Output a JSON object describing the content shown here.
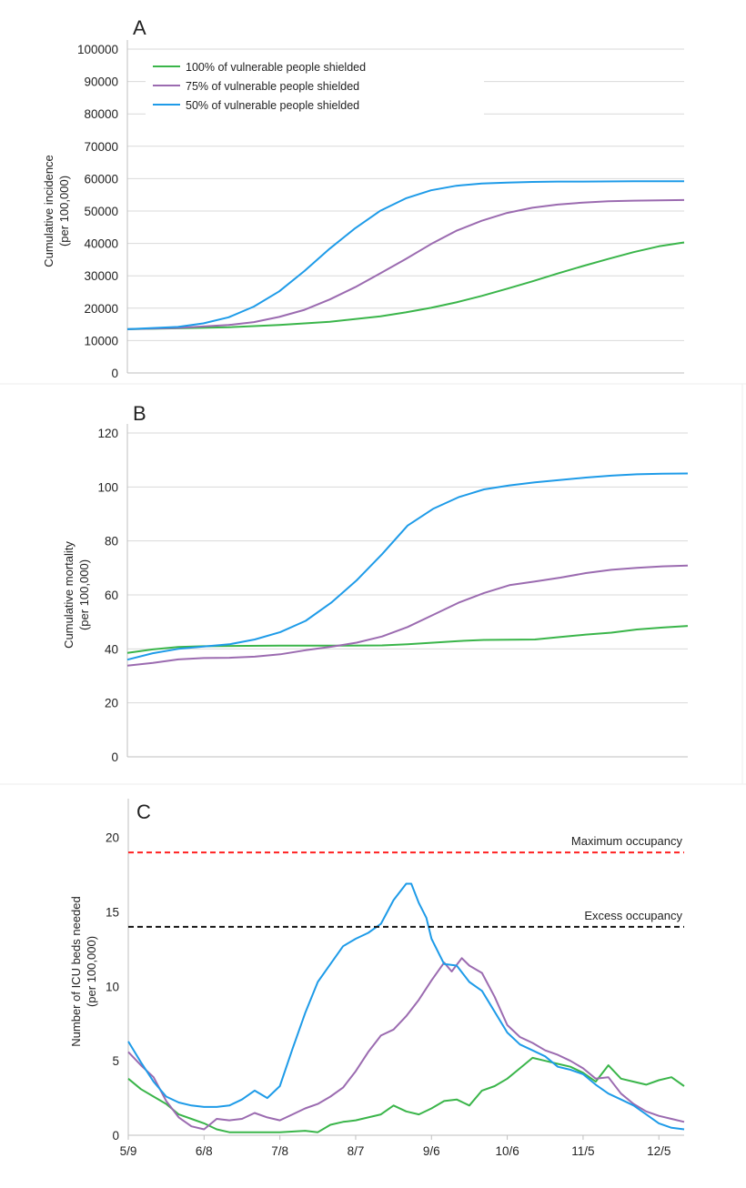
{
  "panel_labels": {
    "a": "A",
    "b": "B",
    "c": "C"
  },
  "legend": [
    {
      "label": "100% of vulnerable people shielded",
      "color": "#3ab54a"
    },
    {
      "label": "75% of vulnerable people shielded",
      "color": "#9b6bb0"
    },
    {
      "label": "50% of vulnerable people shielded",
      "color": "#1e9be8"
    }
  ],
  "reference_lines": {
    "maximum": {
      "label": "Maximum occupancy",
      "value": 19,
      "color": "#ff2020"
    },
    "excess": {
      "label": "Excess occupancy",
      "value": 14,
      "color": "#111111"
    }
  },
  "chart_data": [
    {
      "type": "line",
      "panel": "A",
      "ylabel": "Cumulative incidence\n(per 100,000)",
      "ylim": [
        0,
        100000
      ],
      "yticks": [
        0,
        10000,
        20000,
        30000,
        40000,
        50000,
        60000,
        70000,
        80000,
        90000,
        100000
      ],
      "xlim": [
        0,
        220
      ],
      "grid": "horizontal",
      "legend_placement": "top-left",
      "series": [
        {
          "name": "100% of vulnerable people shielded",
          "color": "#3ab54a",
          "x": [
            0,
            20,
            40,
            60,
            80,
            100,
            110,
            120,
            130,
            140,
            150,
            160,
            170,
            180,
            190,
            200,
            210,
            220
          ],
          "y": [
            13500,
            13800,
            14100,
            14800,
            15800,
            17500,
            18700,
            20100,
            21800,
            23800,
            26000,
            28300,
            30700,
            33000,
            35200,
            37300,
            39100,
            40300
          ]
        },
        {
          "name": "75% of vulnerable people shielded",
          "color": "#9b6bb0",
          "x": [
            0,
            20,
            40,
            50,
            60,
            70,
            80,
            90,
            100,
            110,
            120,
            130,
            140,
            150,
            160,
            170,
            180,
            190,
            200,
            210,
            220
          ],
          "y": [
            13500,
            13900,
            14800,
            15700,
            17300,
            19500,
            22700,
            26500,
            30800,
            35200,
            39800,
            43900,
            47000,
            49400,
            51000,
            52000,
            52600,
            53000,
            53200,
            53300,
            53400
          ]
        },
        {
          "name": "50% of vulnerable people shielded",
          "color": "#1e9be8",
          "x": [
            0,
            20,
            30,
            40,
            50,
            60,
            70,
            80,
            90,
            100,
            110,
            120,
            130,
            140,
            150,
            160,
            170,
            180,
            200,
            220
          ],
          "y": [
            13500,
            14200,
            15300,
            17200,
            20500,
            25200,
            31500,
            38400,
            44700,
            50100,
            53900,
            56400,
            57800,
            58500,
            58800,
            59000,
            59100,
            59100,
            59200,
            59200
          ]
        }
      ]
    },
    {
      "type": "line",
      "panel": "B",
      "ylabel": "Cumulative mortality\n(per 100,000)",
      "ylim": [
        0,
        120
      ],
      "yticks": [
        0,
        20,
        40,
        60,
        80,
        100,
        120
      ],
      "xlim": [
        0,
        220
      ],
      "grid": "horizontal",
      "series": [
        {
          "name": "100% of vulnerable people shielded",
          "color": "#3ab54a",
          "x": [
            0,
            10,
            20,
            30,
            40,
            60,
            80,
            100,
            110,
            120,
            130,
            140,
            150,
            160,
            170,
            180,
            190,
            200,
            210,
            220
          ],
          "y": [
            38.5,
            39.8,
            40.7,
            41.0,
            41.1,
            41.2,
            41.2,
            41.3,
            41.7,
            42.3,
            42.9,
            43.3,
            43.4,
            43.5,
            44.4,
            45.3,
            46.0,
            47.2,
            47.9,
            48.5
          ]
        },
        {
          "name": "75% of vulnerable people shielded",
          "color": "#9b6bb0",
          "x": [
            0,
            10,
            20,
            30,
            40,
            50,
            60,
            70,
            80,
            90,
            100,
            110,
            120,
            130,
            140,
            150,
            160,
            170,
            180,
            190,
            200,
            210,
            220
          ],
          "y": [
            33.8,
            34.8,
            36.1,
            36.6,
            36.7,
            37.1,
            38.0,
            39.5,
            40.8,
            42.3,
            44.6,
            48.1,
            52.6,
            57.1,
            60.7,
            63.6,
            65.0,
            66.4,
            68.1,
            69.3,
            70.0,
            70.6,
            70.9
          ]
        },
        {
          "name": "50% of vulnerable people shielded",
          "color": "#1e9be8",
          "x": [
            0,
            10,
            20,
            30,
            40,
            50,
            60,
            70,
            80,
            90,
            100,
            110,
            120,
            130,
            140,
            150,
            160,
            170,
            180,
            190,
            200,
            210,
            220
          ],
          "y": [
            36.0,
            38.4,
            40.0,
            40.9,
            41.7,
            43.5,
            46.2,
            50.4,
            57.1,
            65.4,
            75.1,
            85.7,
            91.9,
            96.2,
            99.1,
            100.6,
            101.7,
            102.6,
            103.5,
            104.2,
            104.7,
            104.9,
            105.0
          ]
        }
      ]
    },
    {
      "type": "line",
      "panel": "C",
      "ylabel": "Number of ICU beds needed\n(per 100,000)",
      "ylim": [
        0,
        22
      ],
      "yticks": [
        0,
        5,
        10,
        15,
        20
      ],
      "xlim": [
        0,
        220
      ],
      "xticks": [
        0,
        30,
        60,
        90,
        120,
        150,
        180,
        210
      ],
      "xticklabels": [
        "5/9",
        "6/8",
        "7/8",
        "8/7",
        "9/6",
        "10/6",
        "11/5",
        "12/5"
      ],
      "grid": "none",
      "series": [
        {
          "name": "100% of vulnerable people shielded",
          "color": "#3ab54a",
          "x": [
            0,
            5,
            10,
            15,
            20,
            25,
            30,
            35,
            40,
            50,
            60,
            70,
            75,
            80,
            85,
            90,
            95,
            100,
            105,
            110,
            115,
            120,
            125,
            130,
            135,
            140,
            145,
            150,
            155,
            160,
            165,
            170,
            175,
            180,
            185,
            190,
            195,
            200,
            205,
            210,
            215,
            220
          ],
          "y": [
            3.8,
            3.1,
            2.6,
            2.1,
            1.4,
            1.1,
            0.8,
            0.4,
            0.2,
            0.2,
            0.2,
            0.3,
            0.2,
            0.7,
            0.9,
            1.0,
            1.2,
            1.4,
            2.0,
            1.6,
            1.4,
            1.8,
            2.3,
            2.4,
            2.0,
            3.0,
            3.3,
            3.8,
            4.5,
            5.2,
            5.0,
            4.8,
            4.6,
            4.2,
            3.6,
            4.7,
            3.8,
            3.6,
            3.4,
            3.7,
            3.9,
            3.3
          ]
        },
        {
          "name": "75% of vulnerable people shielded",
          "color": "#9b6bb0",
          "x": [
            0,
            5,
            10,
            15,
            20,
            25,
            30,
            35,
            40,
            45,
            50,
            55,
            60,
            65,
            70,
            75,
            80,
            85,
            90,
            95,
            100,
            105,
            110,
            115,
            120,
            125,
            128,
            132,
            135,
            140,
            145,
            150,
            155,
            160,
            165,
            170,
            175,
            180,
            185,
            190,
            195,
            200,
            205,
            210,
            215,
            220
          ],
          "y": [
            5.6,
            4.7,
            3.9,
            2.3,
            1.2,
            0.6,
            0.4,
            1.1,
            1.0,
            1.1,
            1.5,
            1.2,
            1.0,
            1.4,
            1.8,
            2.1,
            2.6,
            3.2,
            4.3,
            5.6,
            6.7,
            7.1,
            8.0,
            9.1,
            10.4,
            11.6,
            11.0,
            11.9,
            11.4,
            10.9,
            9.3,
            7.4,
            6.6,
            6.2,
            5.7,
            5.4,
            5.0,
            4.5,
            3.8,
            3.9,
            2.8,
            2.1,
            1.6,
            1.3,
            1.1,
            0.9
          ]
        },
        {
          "name": "50% of vulnerable people shielded",
          "color": "#1e9be8",
          "x": [
            0,
            5,
            10,
            15,
            20,
            25,
            30,
            35,
            40,
            45,
            50,
            55,
            60,
            65,
            70,
            75,
            80,
            85,
            90,
            95,
            100,
            105,
            110,
            112,
            115,
            118,
            120,
            125,
            130,
            135,
            140,
            145,
            150,
            155,
            160,
            165,
            170,
            175,
            180,
            185,
            190,
            195,
            200,
            205,
            210,
            215,
            220
          ],
          "y": [
            6.3,
            4.9,
            3.6,
            2.6,
            2.2,
            2.0,
            1.9,
            1.9,
            2.0,
            2.4,
            3.0,
            2.5,
            3.3,
            5.8,
            8.2,
            10.3,
            11.5,
            12.7,
            13.2,
            13.6,
            14.2,
            15.8,
            16.9,
            16.9,
            15.6,
            14.6,
            13.2,
            11.5,
            11.4,
            10.3,
            9.7,
            8.3,
            6.9,
            6.1,
            5.7,
            5.3,
            4.6,
            4.4,
            4.1,
            3.4,
            2.8,
            2.4,
            2.0,
            1.4,
            0.8,
            0.5,
            0.4
          ]
        }
      ]
    }
  ]
}
